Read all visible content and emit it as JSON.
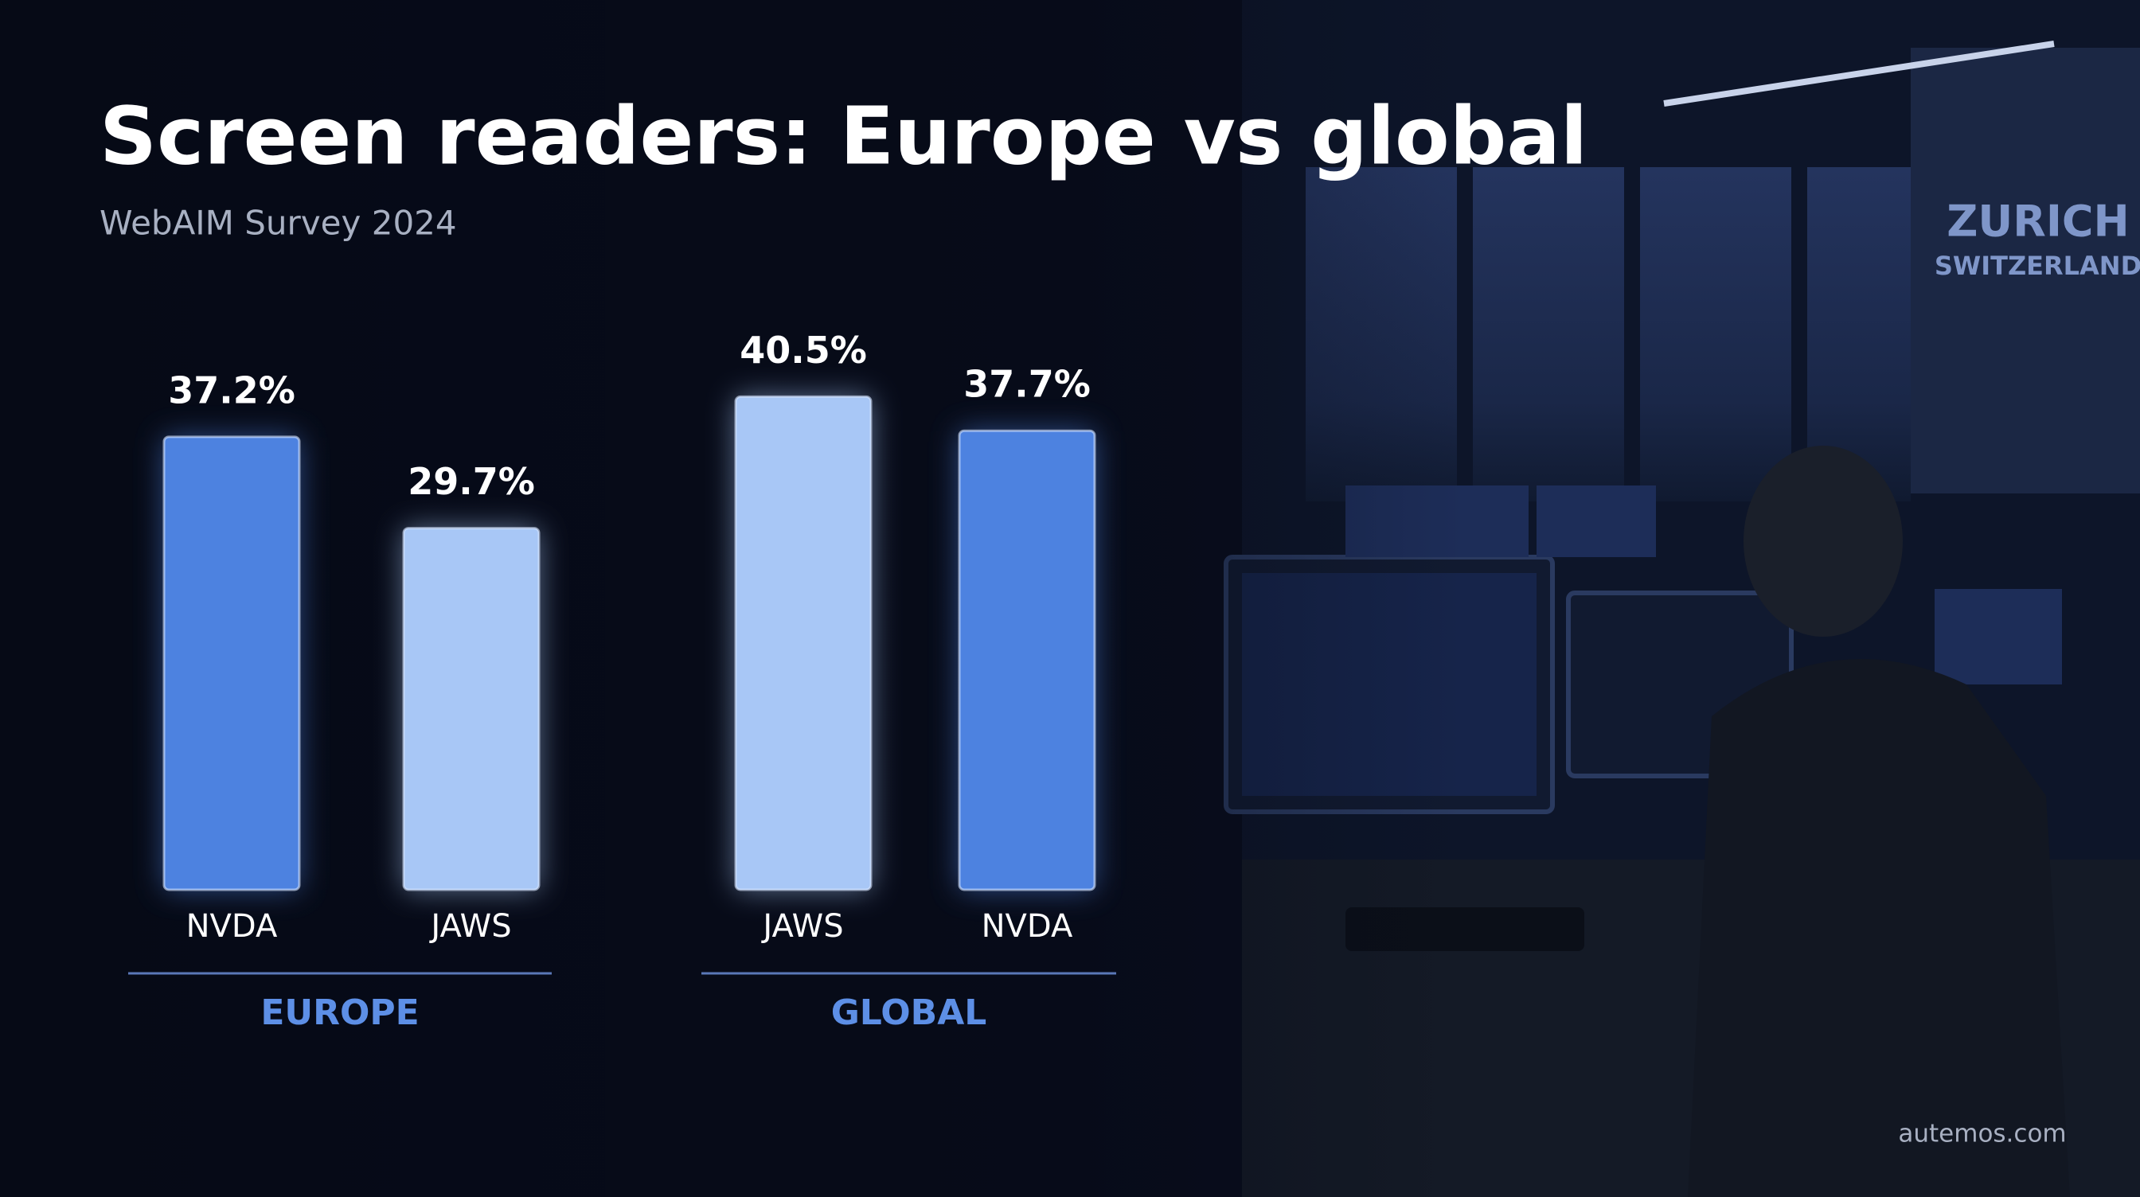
{
  "chart_data": {
    "type": "bar",
    "title": "Screen readers: Europe vs global",
    "subtitle": "WebAIM Survey 2024",
    "groups": [
      {
        "name": "EUROPE",
        "categories": [
          "NVDA",
          "JAWS"
        ],
        "values": [
          37.2,
          29.7
        ],
        "value_labels": [
          "37.2%",
          "29.7%"
        ],
        "colors": [
          "#4d82e0",
          "#a8c7f6"
        ]
      },
      {
        "name": "GLOBAL",
        "categories": [
          "JAWS",
          "NVDA"
        ],
        "values": [
          40.5,
          37.7
        ],
        "value_labels": [
          "40.5%",
          "37.7%"
        ],
        "colors": [
          "#a8c7f6",
          "#4d82e0"
        ]
      }
    ],
    "sign": [
      "ZURICH",
      "SWITZERLAND"
    ],
    "footer": "autemos.com"
  }
}
